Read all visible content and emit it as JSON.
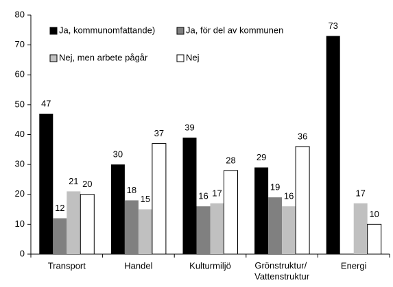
{
  "chart_data": {
    "type": "bar",
    "categories": [
      "Transport",
      "Handel",
      "Kulturmiljö",
      "Grönstruktur/ Vattenstruktur",
      "Energi"
    ],
    "series": [
      {
        "name": "Ja, kommunomfattande)",
        "color": "#000000",
        "values": [
          47,
          30,
          39,
          29,
          73
        ]
      },
      {
        "name": "Ja, för del av kommunen",
        "color": "#808080",
        "values": [
          12,
          18,
          16,
          19,
          null
        ]
      },
      {
        "name": "Nej, men arbete pågår",
        "color": "#c0c0c0",
        "values": [
          21,
          15,
          17,
          16,
          17
        ]
      },
      {
        "name": "Nej",
        "color": "#ffffff",
        "values": [
          20,
          37,
          28,
          36,
          10
        ]
      }
    ],
    "ylim": [
      0,
      80
    ],
    "yticks": [
      0,
      10,
      20,
      30,
      40,
      50,
      60,
      70,
      80
    ],
    "grid": false
  }
}
